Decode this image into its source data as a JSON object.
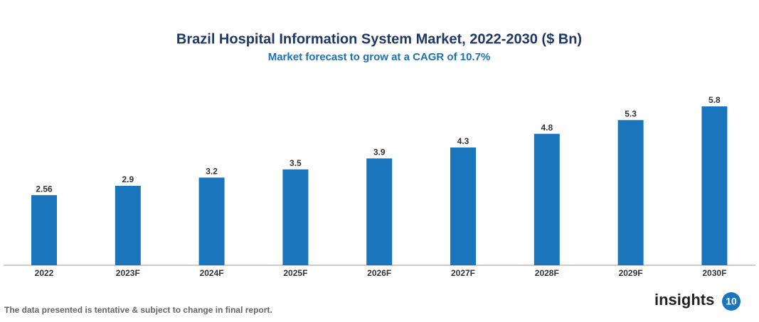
{
  "chart_data": {
    "type": "bar",
    "title": "Brazil Hospital Information System Market, 2022-2030 ($ Bn)",
    "subtitle": "Market forecast to grow at a CAGR of 10.7%",
    "categories": [
      "2022",
      "2023F",
      "2024F",
      "2025F",
      "2026F",
      "2027F",
      "2028F",
      "2029F",
      "2030F"
    ],
    "values": [
      2.56,
      2.9,
      3.2,
      3.5,
      3.9,
      4.3,
      4.8,
      5.3,
      5.8
    ],
    "color": "#1a75bc"
  },
  "footer": {
    "note": "The data presented is tentative & subject to change in final report.",
    "logo_text": "insights",
    "logo_badge": "10"
  }
}
